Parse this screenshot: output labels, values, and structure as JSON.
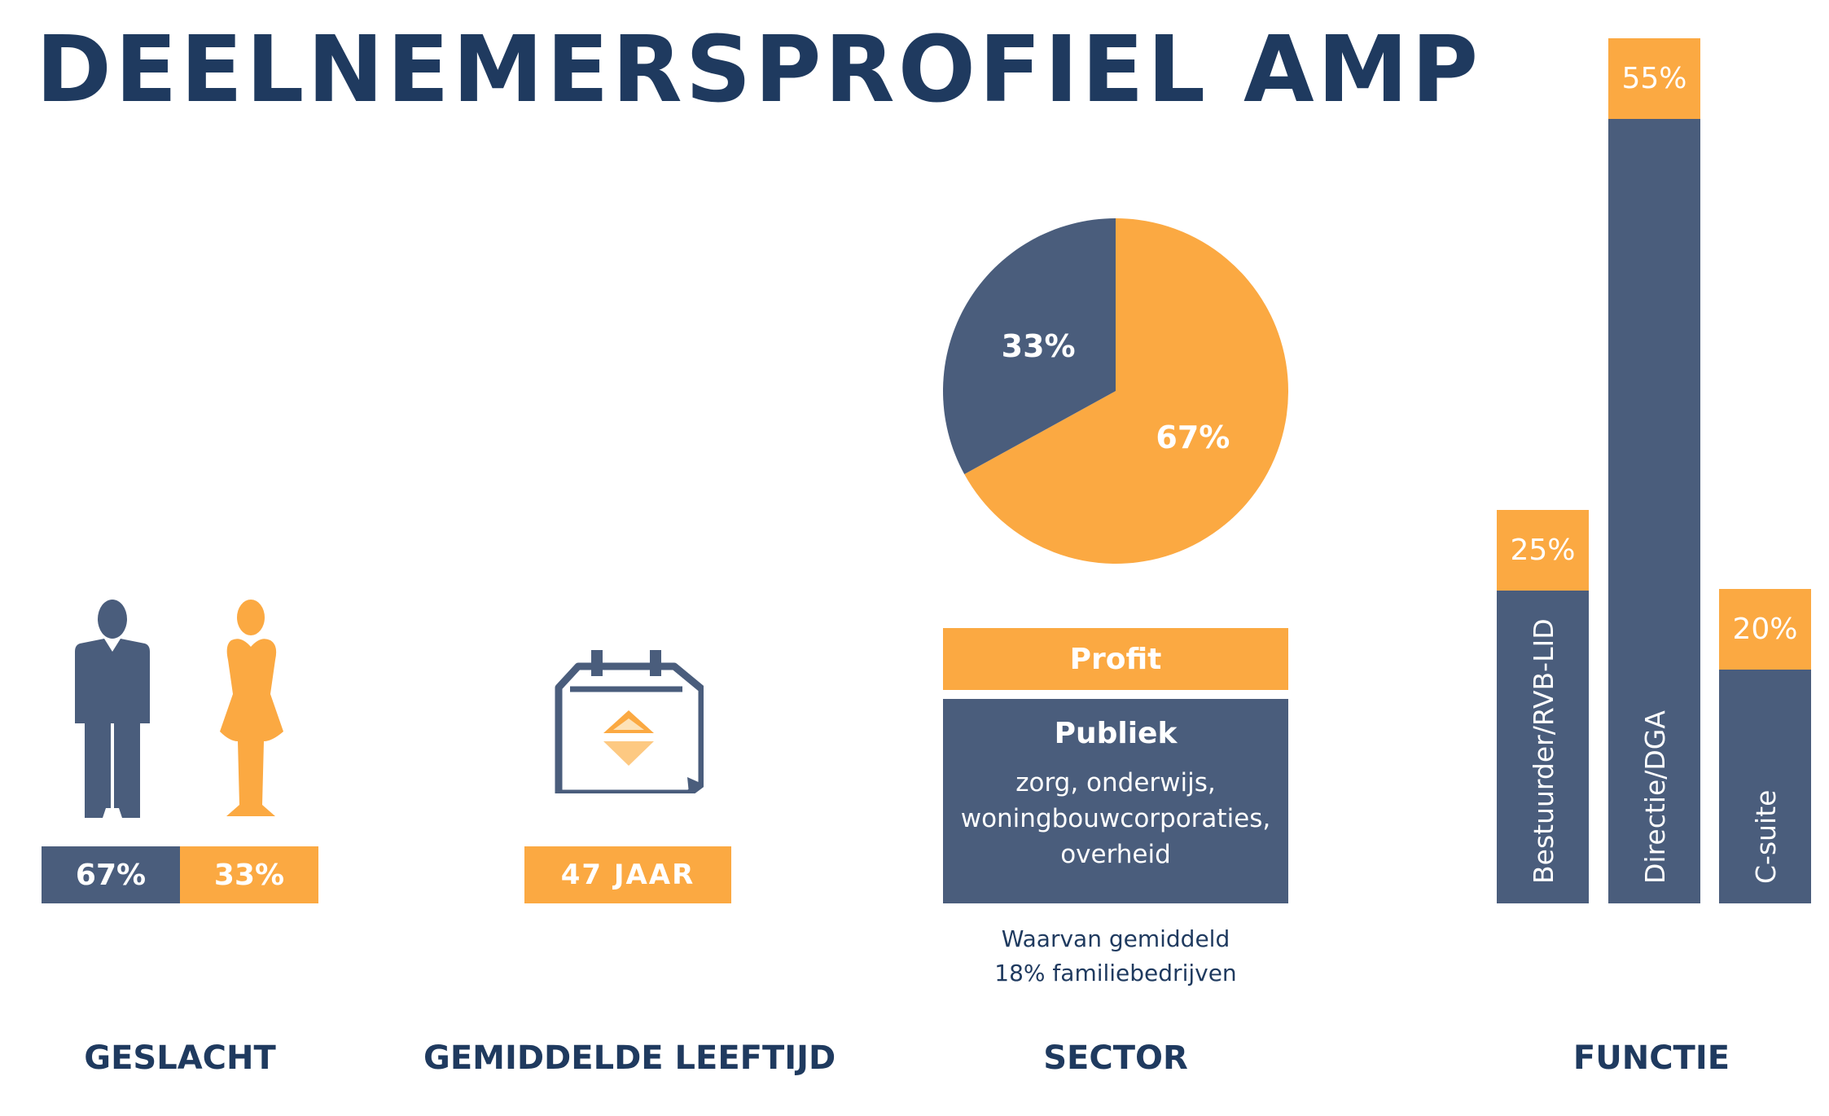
{
  "title": "DEELNEMERSPROFIEL AMP",
  "colors": {
    "navy": "#1f3a5f",
    "slate": "#4a5d7c",
    "orange": "#fba942"
  },
  "gender": {
    "male_pct": "67%",
    "female_pct": "33%",
    "caption": "GESLACHT",
    "icons": [
      "male-person-icon",
      "female-person-icon"
    ]
  },
  "age": {
    "value": "47 JAAR",
    "caption": "GEMIDDELDE LEEFTIJD",
    "icon": "calendar-icon"
  },
  "sector": {
    "caption": "SECTOR",
    "profit_label": "Profit",
    "public_label": "Publiek",
    "public_sub": [
      "zorg, onderwijs,",
      "woningbouwcorporaties,",
      "overheid"
    ],
    "note": [
      "Waarvan gemiddeld",
      "18% familiebedrijven"
    ]
  },
  "function": {
    "caption": "FUNCTIE"
  },
  "chart_data": [
    {
      "type": "pie",
      "slices": [
        {
          "label": "67%",
          "value": 67,
          "color": "#fba942"
        },
        {
          "label": "33%",
          "value": 33,
          "color": "#4a5d7c"
        }
      ]
    },
    {
      "type": "bar",
      "categories": [
        "Bestuurder/RVB-LID",
        "Directie/DGA",
        "C-suite"
      ],
      "values": [
        25,
        55,
        20
      ],
      "value_labels": [
        "25%",
        "55%",
        "20%"
      ]
    }
  ]
}
